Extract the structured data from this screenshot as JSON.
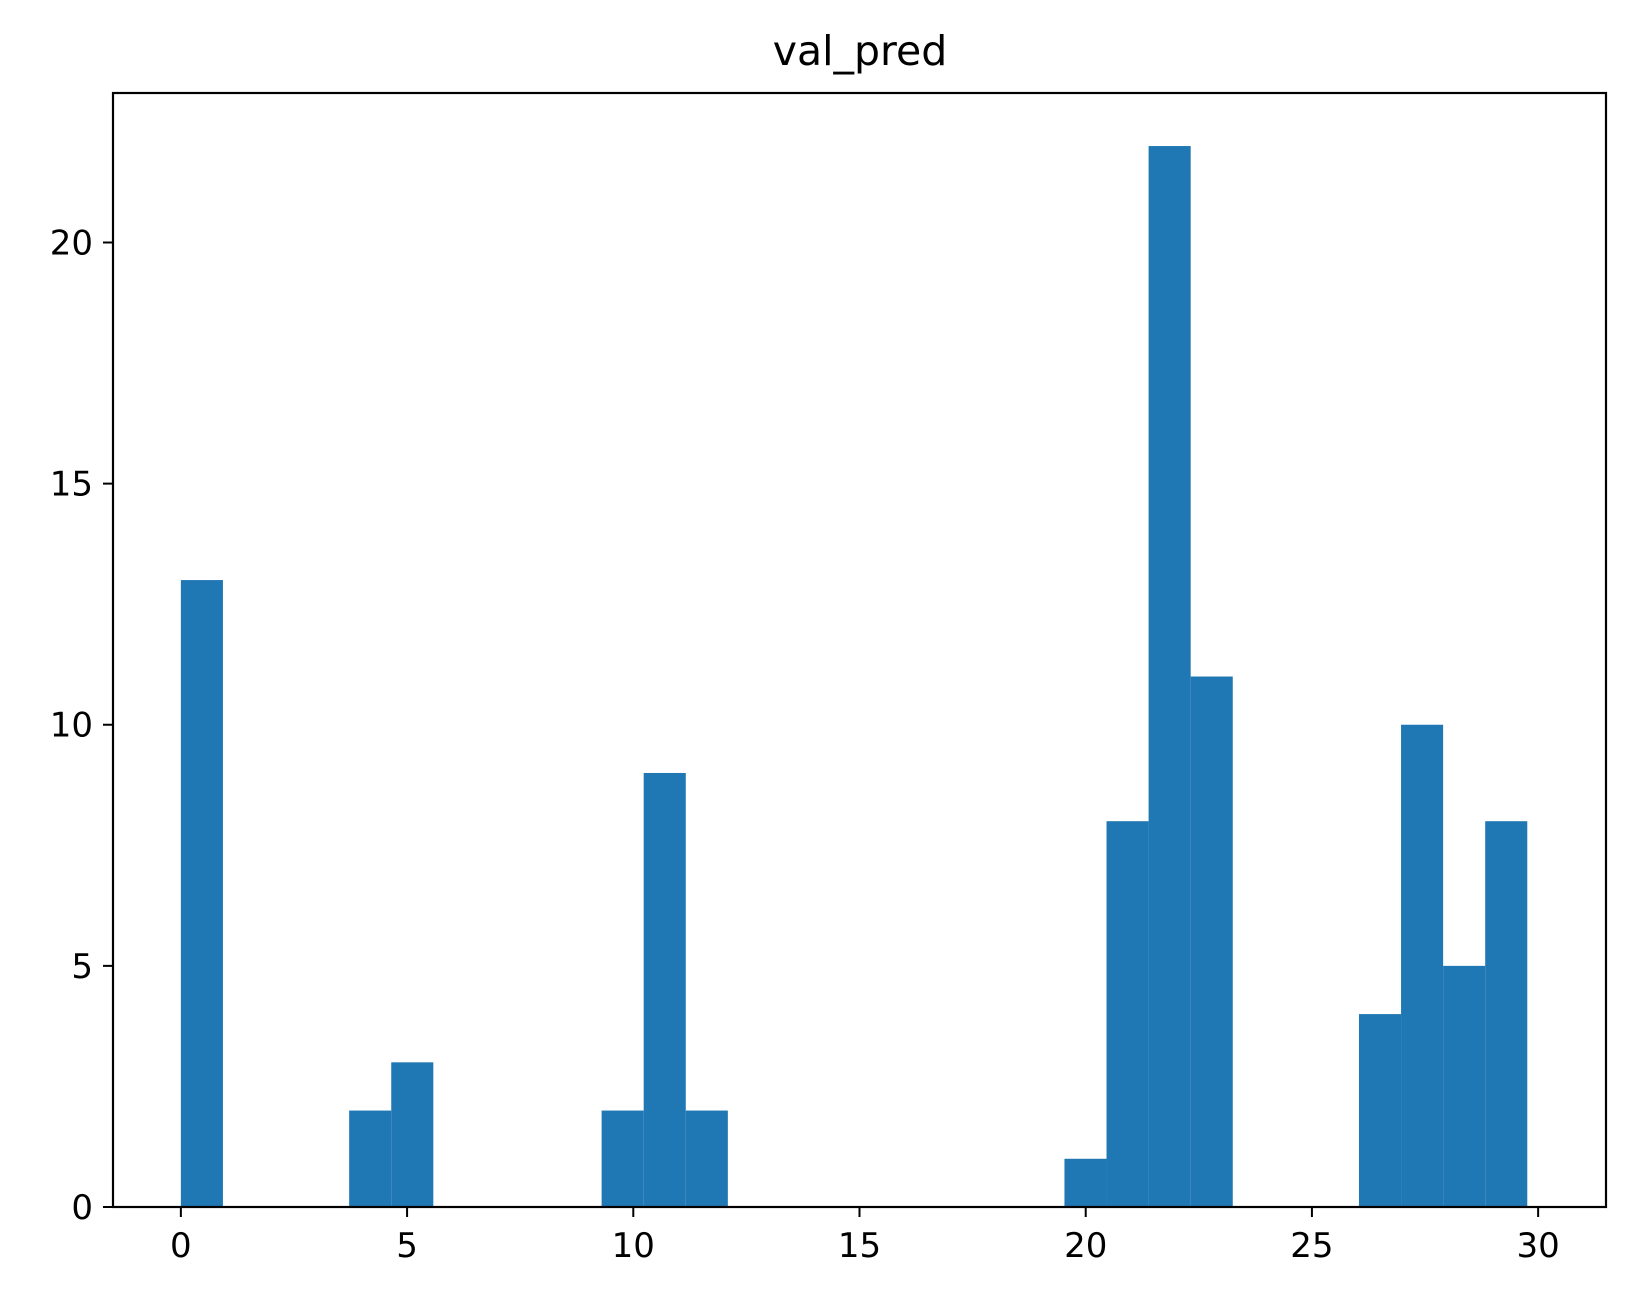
{
  "chart_data": {
    "type": "bar",
    "title": "val_pred",
    "xlabel": "",
    "ylabel": "",
    "xlim": [
      -1.5,
      31.5
    ],
    "ylim": [
      0,
      23.1
    ],
    "xticks": [
      0,
      5,
      10,
      15,
      20,
      25,
      30
    ],
    "yticks": [
      0,
      5,
      10,
      15,
      20
    ],
    "grid": false,
    "bar_color": "#1f77b4",
    "bins": [
      {
        "x0": 0.0,
        "x1": 0.93,
        "value": 13
      },
      {
        "x0": 3.72,
        "x1": 4.65,
        "value": 2
      },
      {
        "x0": 4.65,
        "x1": 5.58,
        "value": 3
      },
      {
        "x0": 9.3,
        "x1": 10.23,
        "value": 2
      },
      {
        "x0": 10.23,
        "x1": 11.16,
        "value": 9
      },
      {
        "x0": 11.16,
        "x1": 12.09,
        "value": 2
      },
      {
        "x0": 19.53,
        "x1": 20.46,
        "value": 1
      },
      {
        "x0": 20.46,
        "x1": 21.39,
        "value": 8
      },
      {
        "x0": 21.39,
        "x1": 22.32,
        "value": 22
      },
      {
        "x0": 22.32,
        "x1": 23.25,
        "value": 11
      },
      {
        "x0": 26.04,
        "x1": 26.97,
        "value": 4
      },
      {
        "x0": 26.97,
        "x1": 27.9,
        "value": 10
      },
      {
        "x0": 27.9,
        "x1": 28.83,
        "value": 5
      },
      {
        "x0": 28.83,
        "x1": 29.76,
        "value": 8
      }
    ]
  }
}
